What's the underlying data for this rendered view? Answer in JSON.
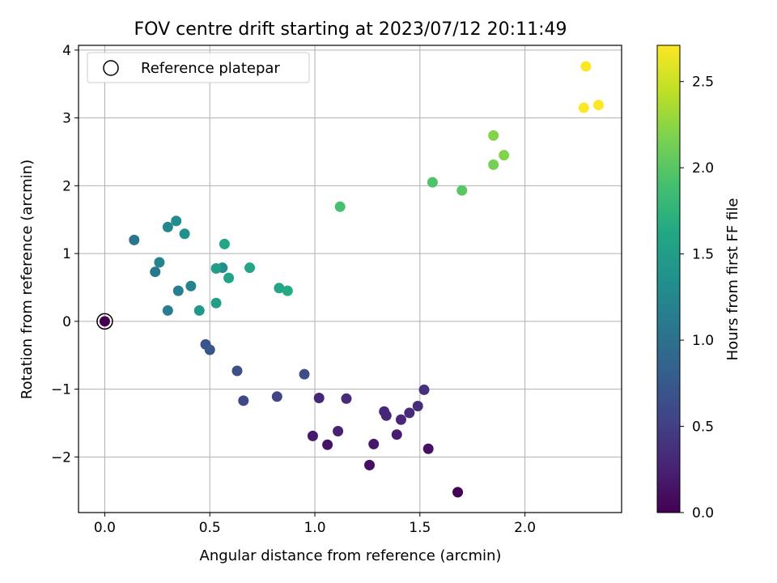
{
  "chart_data": {
    "type": "scatter",
    "title": "FOV centre drift starting at 2023/07/12 20:11:49",
    "xlabel": "Angular distance from reference (arcmin)",
    "ylabel": "Rotation from reference (arcmin)",
    "xlim": [
      -0.125,
      2.46
    ],
    "ylim": [
      -2.82,
      4.07
    ],
    "grid": true,
    "x_ticks": [
      0.0,
      0.5,
      1.0,
      1.5,
      2.0
    ],
    "x_tick_labels": [
      "0.0",
      "0.5",
      "1.0",
      "1.5",
      "2.0"
    ],
    "y_ticks": [
      -2,
      -1,
      0,
      1,
      2,
      3,
      4
    ],
    "y_tick_labels": [
      "−2",
      "−1",
      "0",
      "1",
      "2",
      "3",
      "4"
    ],
    "colorbar": {
      "label": "Hours from first FF file",
      "colormap": "viridis",
      "range": [
        0.0,
        2.71
      ],
      "ticks": [
        0.0,
        0.5,
        1.0,
        1.5,
        2.0,
        2.5
      ],
      "tick_labels": [
        "0.0",
        "0.5",
        "1.0",
        "1.5",
        "2.0",
        "2.5"
      ]
    },
    "legend": {
      "position": "top-left",
      "entries": [
        {
          "label": "Reference platepar",
          "marker": "hollow-circle"
        }
      ]
    },
    "reference_point": {
      "x": 0.0,
      "y": 0.0
    },
    "points": [
      {
        "x": 0.0,
        "y": 0.0,
        "c": 0.0
      },
      {
        "x": 1.68,
        "y": -2.52,
        "c": 0.0
      },
      {
        "x": 1.26,
        "y": -2.12,
        "c": 0.1
      },
      {
        "x": 1.54,
        "y": -1.88,
        "c": 0.12
      },
      {
        "x": 1.06,
        "y": -1.82,
        "c": 0.15
      },
      {
        "x": 1.28,
        "y": -1.81,
        "c": 0.18
      },
      {
        "x": 0.99,
        "y": -1.69,
        "c": 0.2
      },
      {
        "x": 1.39,
        "y": -1.67,
        "c": 0.22
      },
      {
        "x": 1.11,
        "y": -1.62,
        "c": 0.25
      },
      {
        "x": 1.41,
        "y": -1.45,
        "c": 0.28
      },
      {
        "x": 1.34,
        "y": -1.39,
        "c": 0.3
      },
      {
        "x": 1.33,
        "y": -1.33,
        "c": 0.3
      },
      {
        "x": 1.45,
        "y": -1.35,
        "c": 0.32
      },
      {
        "x": 1.49,
        "y": -1.25,
        "c": 0.35
      },
      {
        "x": 1.02,
        "y": -1.13,
        "c": 0.3
      },
      {
        "x": 1.15,
        "y": -1.14,
        "c": 0.32
      },
      {
        "x": 1.52,
        "y": -1.01,
        "c": 0.38
      },
      {
        "x": 0.82,
        "y": -1.11,
        "c": 0.55
      },
      {
        "x": 0.66,
        "y": -1.17,
        "c": 0.6
      },
      {
        "x": 0.95,
        "y": -0.78,
        "c": 0.62
      },
      {
        "x": 0.63,
        "y": -0.73,
        "c": 0.65
      },
      {
        "x": 0.48,
        "y": -0.34,
        "c": 0.7
      },
      {
        "x": 0.5,
        "y": -0.42,
        "c": 0.72
      },
      {
        "x": 0.14,
        "y": 1.2,
        "c": 1.05
      },
      {
        "x": 0.24,
        "y": 0.73,
        "c": 1.1
      },
      {
        "x": 0.3,
        "y": 0.16,
        "c": 1.15
      },
      {
        "x": 0.35,
        "y": 0.45,
        "c": 1.15
      },
      {
        "x": 0.26,
        "y": 0.87,
        "c": 1.2
      },
      {
        "x": 0.41,
        "y": 0.52,
        "c": 1.2
      },
      {
        "x": 0.3,
        "y": 1.39,
        "c": 1.25
      },
      {
        "x": 0.34,
        "y": 1.48,
        "c": 1.3
      },
      {
        "x": 0.38,
        "y": 1.29,
        "c": 1.35
      },
      {
        "x": 0.56,
        "y": 0.79,
        "c": 1.3
      },
      {
        "x": 0.45,
        "y": 0.16,
        "c": 1.45
      },
      {
        "x": 0.53,
        "y": 0.27,
        "c": 1.5
      },
      {
        "x": 0.53,
        "y": 0.78,
        "c": 1.5
      },
      {
        "x": 0.59,
        "y": 0.64,
        "c": 1.55
      },
      {
        "x": 0.57,
        "y": 1.14,
        "c": 1.6
      },
      {
        "x": 0.69,
        "y": 0.79,
        "c": 1.6
      },
      {
        "x": 0.83,
        "y": 0.49,
        "c": 1.6
      },
      {
        "x": 0.87,
        "y": 0.45,
        "c": 1.65
      },
      {
        "x": 1.12,
        "y": 1.69,
        "c": 1.9
      },
      {
        "x": 1.56,
        "y": 2.05,
        "c": 1.95
      },
      {
        "x": 1.7,
        "y": 1.93,
        "c": 2.0
      },
      {
        "x": 1.85,
        "y": 2.31,
        "c": 2.15
      },
      {
        "x": 1.9,
        "y": 2.45,
        "c": 2.2
      },
      {
        "x": 1.85,
        "y": 2.74,
        "c": 2.2
      },
      {
        "x": 2.29,
        "y": 3.76,
        "c": 2.7
      },
      {
        "x": 2.28,
        "y": 3.15,
        "c": 2.7
      },
      {
        "x": 2.35,
        "y": 3.19,
        "c": 2.7
      }
    ]
  }
}
